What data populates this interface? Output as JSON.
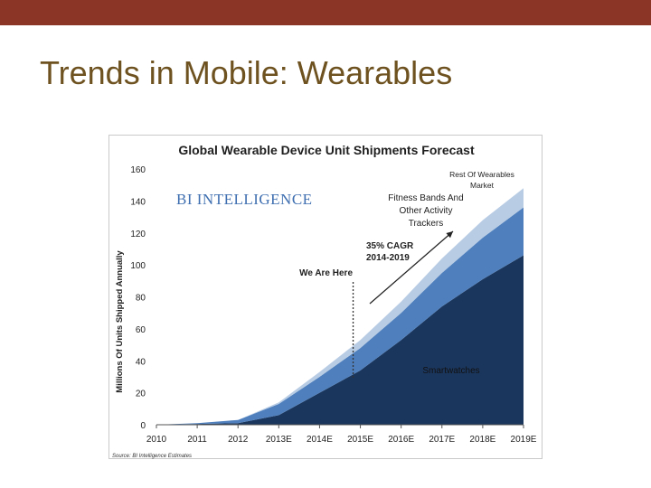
{
  "slide": {
    "title": "Trends in Mobile: Wearables"
  },
  "colors": {
    "top_bar": "#8a3526",
    "title": "#6e5220",
    "smartwatches": "#1b365d",
    "fitness": "#4f80bd",
    "rest": "#b8cce4",
    "logo": "#3f6fb0"
  },
  "chart_data": {
    "type": "area",
    "stacked": true,
    "title": "Global Wearable Device Unit Shipments Forecast",
    "ylabel": "Millions Of Units Shipped Annually",
    "xlabel": "",
    "categories": [
      "2010",
      "2011",
      "2012",
      "2013E",
      "2014E",
      "2015E",
      "2016E",
      "2017E",
      "2018E",
      "2019E"
    ],
    "ylim": [
      0,
      160
    ],
    "yticks": [
      0,
      20,
      40,
      60,
      80,
      100,
      120,
      140,
      160
    ],
    "series": [
      {
        "name": "Smartwatches",
        "color": "#1b365d",
        "values": [
          0,
          0.5,
          1,
          6,
          20,
          34,
          53,
          74,
          91,
          106
        ]
      },
      {
        "name": "Fitness Bands And Other Activity Trackers",
        "color": "#4f80bd",
        "values": [
          0,
          0.5,
          2,
          7,
          10,
          14,
          17,
          21,
          26,
          30
        ]
      },
      {
        "name": "Rest Of Wearables Market",
        "color": "#b8cce4",
        "values": [
          0,
          0,
          0,
          1,
          3,
          5,
          7,
          9,
          11,
          12
        ]
      }
    ],
    "legend": "inline labels",
    "grid": false,
    "annotations": {
      "we_are_here": "We Are Here",
      "cagr_line1": "35% CAGR",
      "cagr_line2": "2014-2019",
      "fitness_line1": "Fitness Bands And",
      "fitness_line2": "Other Activity",
      "fitness_line3": "Trackers",
      "rest_line1": "Rest Of Wearables",
      "rest_line2": "Market",
      "smartwatches": "Smartwatches"
    },
    "logo": "BI INTELLIGENCE",
    "source": "Source: BI Intelligence Estimates"
  }
}
